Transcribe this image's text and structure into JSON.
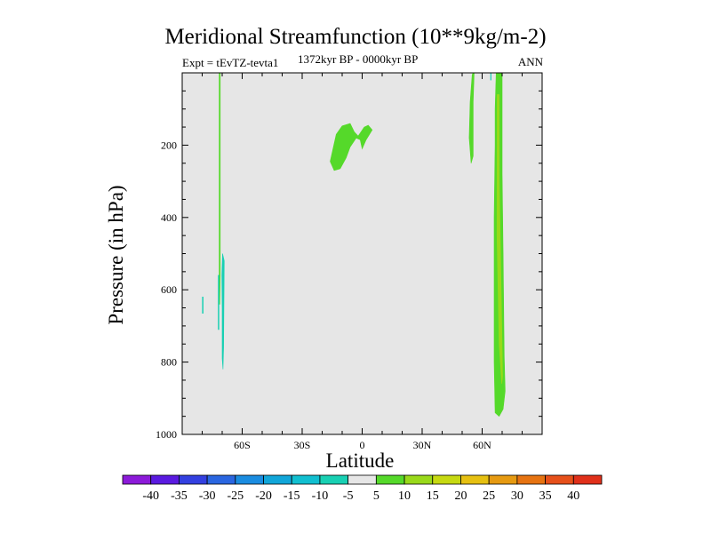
{
  "chart_data": {
    "type": "heatmap",
    "title": "Meridional Streamfunction (10**9kg/m-2)",
    "subtitle_left": "Expt = tEvTZ-tevta1",
    "subtitle_center": "1372kyr BP - 0000kyr BP",
    "subtitle_right": "ANN",
    "xlabel": "Latitude",
    "ylabel": "Pressure (in hPa)",
    "xlim": [
      -90,
      90
    ],
    "ylim": [
      1000,
      0
    ],
    "x_ticks": [
      {
        "value": -60,
        "label": "60S"
      },
      {
        "value": -30,
        "label": "30S"
      },
      {
        "value": 0,
        "label": "0"
      },
      {
        "value": 30,
        "label": "30N"
      },
      {
        "value": 60,
        "label": "60N"
      }
    ],
    "y_ticks": [
      {
        "value": 200,
        "label": "200"
      },
      {
        "value": 400,
        "label": "400"
      },
      {
        "value": 600,
        "label": "600"
      },
      {
        "value": 800,
        "label": "800"
      },
      {
        "value": 1000,
        "label": "1000"
      }
    ],
    "background_color": "#e6e6e6",
    "colorbar": {
      "levels": [
        "-40",
        "-35",
        "-30",
        "-25",
        "-20",
        "-15",
        "-10",
        "-5",
        "5",
        "10",
        "15",
        "20",
        "25",
        "30",
        "35",
        "40"
      ],
      "colors": [
        "#8c1ad9",
        "#5a1ae0",
        "#3340e0",
        "#2a66e0",
        "#1a8ce0",
        "#11a6d9",
        "#11bfd0",
        "#18d0b3",
        "#e6e6e6",
        "#55d92a",
        "#99d91a",
        "#c6d911",
        "#e6c011",
        "#e69a11",
        "#e67311",
        "#e6501a",
        "#e0301a"
      ]
    },
    "contours": [
      {
        "name": "thin-band-60S",
        "value": 5,
        "color": "#55d92a",
        "points": [
          [
            -71.5,
            0
          ],
          [
            -71.0,
            0
          ],
          [
            -71.0,
            560
          ],
          [
            -71.2,
            640
          ],
          [
            -71.5,
            640
          ]
        ]
      },
      {
        "name": "neg-band-60S-tail",
        "value": -5,
        "color": "#18d0b3",
        "points": [
          [
            -72.0,
            560
          ],
          [
            -71.6,
            560
          ],
          [
            -71.6,
            710
          ],
          [
            -72.0,
            710
          ]
        ]
      },
      {
        "name": "neg-band-58S",
        "value": -5,
        "color": "#18d0b3",
        "points": [
          [
            -69.8,
            500
          ],
          [
            -69.0,
            520
          ],
          [
            -69.3,
            760
          ],
          [
            -69.6,
            820
          ],
          [
            -70.0,
            790
          ],
          [
            -70.0,
            650
          ],
          [
            -70.2,
            560
          ]
        ]
      },
      {
        "name": "neg-dot-78S",
        "value": -5,
        "color": "#18d0b3",
        "points": [
          [
            -79.9,
            620
          ],
          [
            -79.5,
            620
          ],
          [
            -79.5,
            665
          ],
          [
            -79.9,
            665
          ]
        ]
      },
      {
        "name": "upper-trop-blob",
        "value": 5,
        "color": "#55d92a",
        "points": [
          [
            -15,
            220
          ],
          [
            -13,
            170
          ],
          [
            -10,
            147
          ],
          [
            -6,
            140
          ],
          [
            -4,
            163
          ],
          [
            -2,
            175
          ],
          [
            1,
            150
          ],
          [
            3,
            145
          ],
          [
            5,
            158
          ],
          [
            2,
            185
          ],
          [
            0,
            210
          ],
          [
            -1,
            185
          ],
          [
            -3,
            180
          ],
          [
            -6,
            205
          ],
          [
            -8,
            235
          ],
          [
            -11,
            265
          ],
          [
            -14,
            270
          ],
          [
            -16,
            245
          ]
        ]
      },
      {
        "name": "band-55N",
        "value": 5,
        "color": "#55d92a",
        "points": [
          [
            54,
            80
          ],
          [
            55,
            5
          ],
          [
            55.5,
            0
          ],
          [
            56,
            0
          ],
          [
            55.5,
            80
          ],
          [
            55.5,
            230
          ],
          [
            54.5,
            250
          ],
          [
            53.5,
            180
          ]
        ]
      },
      {
        "name": "band-65N",
        "value": 5,
        "color": "#55d92a",
        "points": [
          [
            67,
            0
          ],
          [
            70,
            0
          ],
          [
            70,
            280
          ],
          [
            70.5,
            500
          ],
          [
            71,
            780
          ],
          [
            71.5,
            880
          ],
          [
            70.5,
            930
          ],
          [
            68.5,
            950
          ],
          [
            66.5,
            940
          ],
          [
            66,
            800
          ],
          [
            66,
            400
          ],
          [
            66.5,
            200
          ],
          [
            66.5,
            100
          ]
        ]
      },
      {
        "name": "band-65N-core",
        "value": 10,
        "color": "#99d91a",
        "points": [
          [
            67.5,
            60
          ],
          [
            68.5,
            60
          ],
          [
            68.6,
            300
          ],
          [
            69.8,
            700
          ],
          [
            70.2,
            840
          ],
          [
            69.8,
            860
          ],
          [
            68.5,
            750
          ],
          [
            67.4,
            450
          ]
        ]
      },
      {
        "name": "band-64N-sliver",
        "value": -5,
        "color": "#18d0b3",
        "points": [
          [
            64.2,
            0
          ],
          [
            64.5,
            0
          ],
          [
            64.5,
            20
          ],
          [
            64.2,
            20
          ]
        ]
      }
    ]
  }
}
